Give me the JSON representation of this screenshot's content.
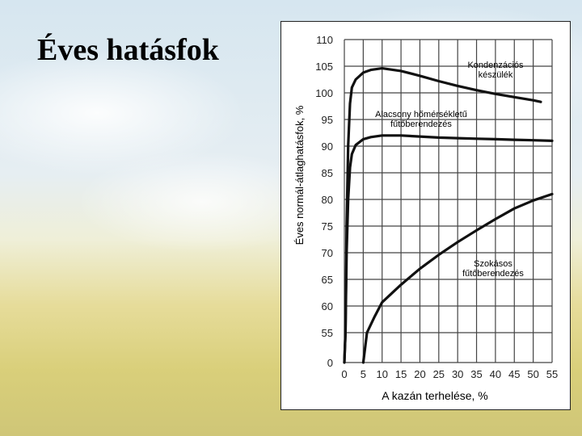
{
  "slide": {
    "title": "Éves hatásfok"
  },
  "chart_data": {
    "type": "line",
    "xlabel": "A kazán terhelése, %",
    "ylabel": "Éves normál-átlaghatásfok, %",
    "x_ticks": [
      0,
      5,
      10,
      15,
      20,
      25,
      30,
      35,
      40,
      45,
      50,
      55
    ],
    "y_ticks": [
      0,
      55,
      60,
      65,
      70,
      75,
      80,
      85,
      90,
      95,
      100,
      105,
      110
    ],
    "xlim": [
      0,
      55
    ],
    "ylim": [
      0,
      110
    ],
    "y_axis_break": "0 to 55 compressed",
    "grid": true,
    "series": [
      {
        "name": "Kondenzációs készülék",
        "points": [
          [
            0,
            0
          ],
          [
            0.3,
            55
          ],
          [
            0.6,
            75
          ],
          [
            1,
            90
          ],
          [
            1.5,
            98
          ],
          [
            2,
            101
          ],
          [
            3,
            102.5
          ],
          [
            5,
            103.8
          ],
          [
            7,
            104.3
          ],
          [
            10,
            104.6
          ],
          [
            15,
            104.1
          ],
          [
            20,
            103.2
          ],
          [
            25,
            102.2
          ],
          [
            30,
            101.3
          ],
          [
            35,
            100.5
          ],
          [
            40,
            99.8
          ],
          [
            45,
            99.2
          ],
          [
            50,
            98.6
          ],
          [
            52,
            98.3
          ]
        ]
      },
      {
        "name": "Alacsony hőmérsékletű fűtőberendezés",
        "points": [
          [
            0,
            0
          ],
          [
            0.3,
            55
          ],
          [
            0.6,
            70
          ],
          [
            1,
            80
          ],
          [
            1.5,
            86
          ],
          [
            2,
            88.5
          ],
          [
            3,
            90.2
          ],
          [
            5,
            91.3
          ],
          [
            7,
            91.7
          ],
          [
            10,
            92.0
          ],
          [
            15,
            92.0
          ],
          [
            20,
            91.8
          ],
          [
            25,
            91.6
          ],
          [
            30,
            91.5
          ],
          [
            35,
            91.4
          ],
          [
            40,
            91.3
          ],
          [
            45,
            91.2
          ],
          [
            50,
            91.1
          ],
          [
            55,
            91.0
          ]
        ]
      },
      {
        "name": "Szokásos fűtőberendezés",
        "points": [
          [
            5,
            0
          ],
          [
            6,
            55
          ],
          [
            8,
            58
          ],
          [
            10,
            60.7
          ],
          [
            15,
            64
          ],
          [
            20,
            67
          ],
          [
            25,
            69.6
          ],
          [
            30,
            72
          ],
          [
            35,
            74.2
          ],
          [
            40,
            76.3
          ],
          [
            45,
            78.3
          ],
          [
            50,
            79.8
          ],
          [
            55,
            81
          ]
        ]
      }
    ]
  }
}
